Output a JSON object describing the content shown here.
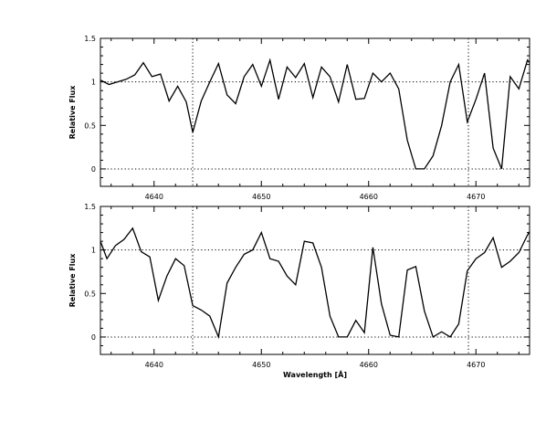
{
  "chart_data": [
    {
      "type": "line",
      "ylabel": "Relative Flux",
      "xlabel": "",
      "xlim": [
        4635,
        4675
      ],
      "ylim": [
        -0.2,
        1.5
      ],
      "xticks": [
        4640,
        4650,
        4660,
        4670
      ],
      "yticks": [
        0,
        0.5,
        1,
        1.5
      ],
      "ytick_labels": [
        "0",
        "0.5",
        "1",
        "1.5"
      ],
      "show_x_tick_labels": true,
      "hlines": [
        0,
        1
      ],
      "vlines": [
        4643.6,
        4669.3
      ],
      "series": [
        {
          "x": [
            4635.0,
            4635.8,
            4636.6,
            4637.4,
            4638.2,
            4639.0,
            4639.8,
            4640.6,
            4641.4,
            4642.2,
            4643.0,
            4643.6,
            4644.4,
            4645.2,
            4646.0,
            4646.8,
            4647.6,
            4648.4,
            4649.2,
            4650.0,
            4650.8,
            4651.6,
            4652.4,
            4653.2,
            4654.0,
            4654.8,
            4655.6,
            4656.4,
            4657.2,
            4658.0,
            4658.8,
            4659.6,
            4660.4,
            4661.2,
            4662.0,
            4662.8,
            4663.6,
            4664.4,
            4665.2,
            4666.0,
            4666.8,
            4667.6,
            4668.4,
            4669.2,
            4670.0,
            4670.8,
            4671.6,
            4672.4,
            4673.2,
            4674.0,
            4674.8,
            4675.0
          ],
          "y": [
            1.02,
            0.97,
            1.0,
            1.03,
            1.08,
            1.22,
            1.06,
            1.09,
            0.78,
            0.95,
            0.77,
            0.42,
            0.78,
            1.0,
            1.21,
            0.85,
            0.75,
            1.06,
            1.2,
            0.95,
            1.25,
            0.8,
            1.17,
            1.05,
            1.21,
            0.82,
            1.17,
            1.06,
            0.77,
            1.2,
            0.8,
            0.81,
            1.1,
            1.0,
            1.1,
            0.92,
            0.33,
            0.0,
            0.0,
            0.15,
            0.5,
            1.0,
            1.2,
            0.54,
            0.8,
            1.1,
            0.24,
            0.0,
            1.06,
            0.92,
            1.25,
            1.22
          ]
        }
      ]
    },
    {
      "type": "line",
      "ylabel": "Relative Flux",
      "xlabel": "Wavelength [Å]",
      "xlim": [
        4635,
        4675
      ],
      "ylim": [
        -0.2,
        1.5
      ],
      "xticks": [
        4640,
        4650,
        4660,
        4670
      ],
      "yticks": [
        0,
        0.5,
        1,
        1.5
      ],
      "ytick_labels": [
        "0",
        "0.5",
        "1",
        "1.5"
      ],
      "show_x_tick_labels": true,
      "hlines": [
        0,
        1
      ],
      "vlines": [
        4643.6,
        4669.3
      ],
      "series": [
        {
          "x": [
            4635.0,
            4635.6,
            4636.4,
            4637.2,
            4638.0,
            4638.8,
            4639.6,
            4640.4,
            4641.2,
            4642.0,
            4642.8,
            4643.6,
            4644.4,
            4645.2,
            4646.0,
            4646.8,
            4647.6,
            4648.4,
            4649.2,
            4650.0,
            4650.8,
            4651.6,
            4652.4,
            4653.2,
            4654.0,
            4654.8,
            4655.6,
            4656.4,
            4657.2,
            4658.0,
            4658.8,
            4659.6,
            4660.4,
            4661.2,
            4662.0,
            4662.8,
            4663.6,
            4664.4,
            4665.2,
            4666.0,
            4666.8,
            4667.6,
            4668.4,
            4669.2,
            4670.0,
            4670.8,
            4671.6,
            4672.4,
            4673.2,
            4674.0,
            4674.8,
            4675.0
          ],
          "y": [
            1.1,
            0.9,
            1.05,
            1.12,
            1.25,
            0.98,
            0.92,
            0.42,
            0.7,
            0.9,
            0.82,
            0.36,
            0.31,
            0.24,
            0.0,
            0.62,
            0.8,
            0.95,
            1.0,
            1.2,
            0.9,
            0.87,
            0.7,
            0.6,
            1.1,
            1.08,
            0.8,
            0.24,
            0.0,
            0.0,
            0.19,
            0.05,
            1.03,
            0.38,
            0.02,
            0.0,
            0.77,
            0.81,
            0.3,
            0.0,
            0.06,
            0.0,
            0.15,
            0.76,
            0.9,
            0.97,
            1.14,
            0.8,
            0.87,
            0.97,
            1.17,
            1.21
          ]
        }
      ]
    }
  ]
}
